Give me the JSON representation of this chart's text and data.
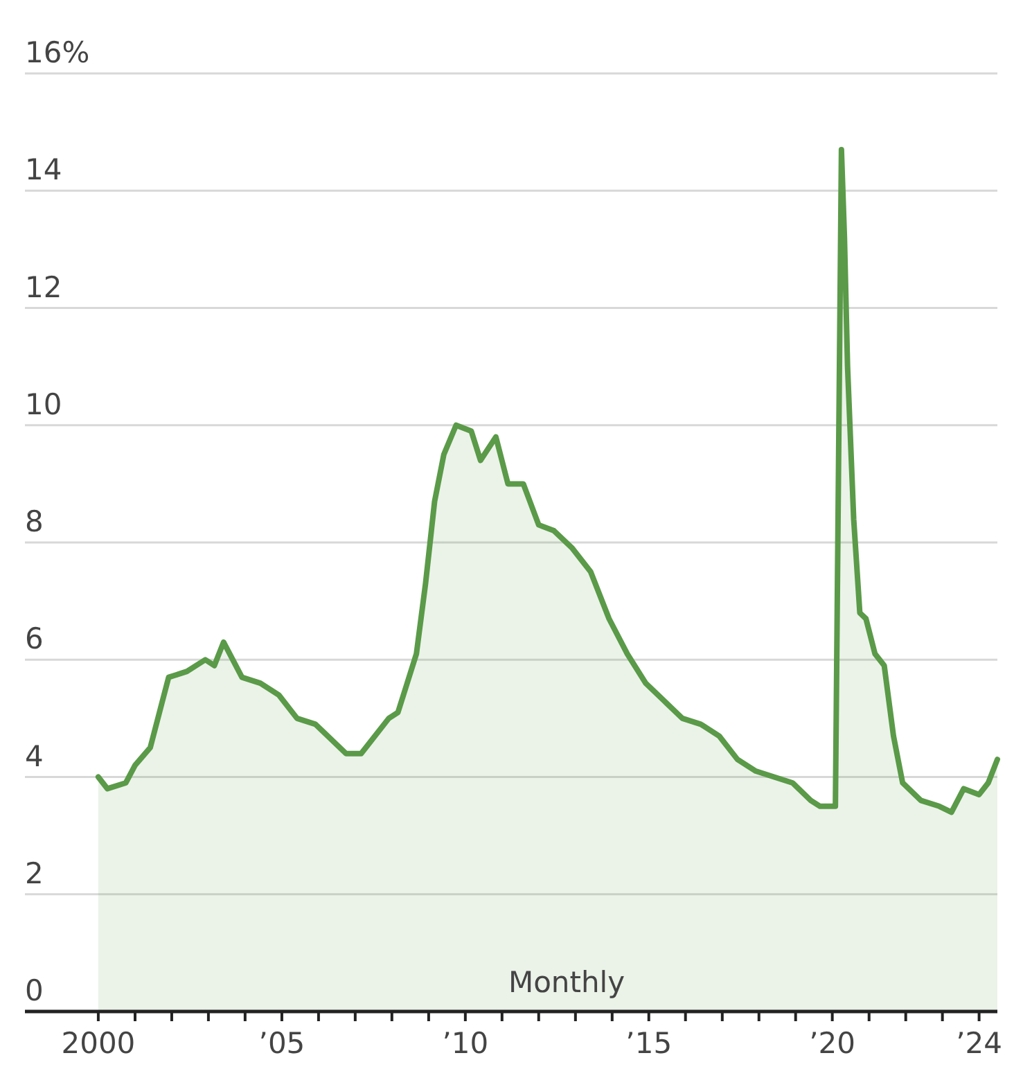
{
  "chart_data": {
    "type": "area",
    "annotations": [
      "Monthly"
    ],
    "x": [
      "2000-01",
      "2000-04",
      "2000-10",
      "2001-01",
      "2001-06",
      "2001-12",
      "2002-06",
      "2002-12",
      "2003-03",
      "2003-06",
      "2003-12",
      "2004-06",
      "2004-12",
      "2005-06",
      "2005-12",
      "2006-06",
      "2006-10",
      "2007-03",
      "2007-06",
      "2007-12",
      "2008-03",
      "2008-06",
      "2008-09",
      "2008-12",
      "2009-03",
      "2009-06",
      "2009-10",
      "2010-03",
      "2010-06",
      "2010-11",
      "2011-03",
      "2011-08",
      "2012-01",
      "2012-06",
      "2012-12",
      "2013-06",
      "2013-12",
      "2014-06",
      "2014-12",
      "2015-06",
      "2015-12",
      "2016-06",
      "2016-12",
      "2017-06",
      "2017-12",
      "2018-06",
      "2018-12",
      "2019-06",
      "2019-09",
      "2020-02",
      "2020-04",
      "2020-05",
      "2020-06",
      "2020-08",
      "2020-10",
      "2020-12",
      "2021-03",
      "2021-06",
      "2021-09",
      "2021-12",
      "2022-06",
      "2022-12",
      "2023-04",
      "2023-08",
      "2024-01",
      "2024-04",
      "2024-07"
    ],
    "series": [
      {
        "color": "#5a9a48",
        "values": [
          4.0,
          3.8,
          3.9,
          4.2,
          4.5,
          5.7,
          5.8,
          6.0,
          5.9,
          6.3,
          5.7,
          5.6,
          5.4,
          5.0,
          4.9,
          4.6,
          4.4,
          4.4,
          4.6,
          5.0,
          5.1,
          5.6,
          6.1,
          7.3,
          8.7,
          9.5,
          10.0,
          9.9,
          9.4,
          9.8,
          9.0,
          9.0,
          8.3,
          8.2,
          7.9,
          7.5,
          6.7,
          6.1,
          5.6,
          5.3,
          5.0,
          4.9,
          4.7,
          4.3,
          4.1,
          4.0,
          3.9,
          3.6,
          3.5,
          3.5,
          14.7,
          13.2,
          11.0,
          8.4,
          6.8,
          6.7,
          6.1,
          5.9,
          4.7,
          3.9,
          3.6,
          3.5,
          3.4,
          3.8,
          3.7,
          3.9,
          4.3
        ]
      }
    ],
    "xlim": [
      "1998-01",
      "2024-07"
    ],
    "xticks": [
      {
        "value": "2000",
        "label": "2000"
      },
      {
        "value": "2001",
        "label": null
      },
      {
        "value": "2002",
        "label": null
      },
      {
        "value": "2003",
        "label": null
      },
      {
        "value": "2004",
        "label": null
      },
      {
        "value": "2005",
        "label": "’05"
      },
      {
        "value": "2006",
        "label": null
      },
      {
        "value": "2007",
        "label": null
      },
      {
        "value": "2008",
        "label": null
      },
      {
        "value": "2009",
        "label": null
      },
      {
        "value": "2010",
        "label": "’10"
      },
      {
        "value": "2011",
        "label": null
      },
      {
        "value": "2012",
        "label": null
      },
      {
        "value": "2013",
        "label": null
      },
      {
        "value": "2014",
        "label": null
      },
      {
        "value": "2015",
        "label": "’15"
      },
      {
        "value": "2016",
        "label": null
      },
      {
        "value": "2017",
        "label": null
      },
      {
        "value": "2018",
        "label": null
      },
      {
        "value": "2019",
        "label": null
      },
      {
        "value": "2020",
        "label": "’20"
      },
      {
        "value": "2021",
        "label": null
      },
      {
        "value": "2022",
        "label": null
      },
      {
        "value": "2023",
        "label": null
      },
      {
        "value": "2024",
        "label": "’24"
      }
    ],
    "ylim": [
      0,
      16
    ],
    "yticks": [
      0,
      2,
      4,
      6,
      8,
      10,
      12,
      14,
      {
        "value": 16,
        "label": "16%"
      }
    ],
    "grid": "y"
  }
}
